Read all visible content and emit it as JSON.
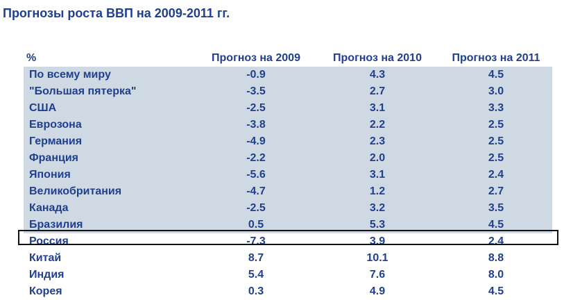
{
  "title": "Прогнозы роста ВВП на 2009-2011 гг.",
  "chart_data": {
    "type": "table",
    "title": "Прогнозы роста ВВП на 2009-2011 гг.",
    "columns": [
      "%",
      "Прогноз на 2009",
      "Прогноз на 2010",
      "Прогноз на 2011"
    ],
    "rows": [
      {
        "label": "По всему миру",
        "values": [
          "-0.9",
          "4.3",
          "4.5"
        ]
      },
      {
        "label": "\"Большая пятерка\"",
        "values": [
          "-3.5",
          "2.7",
          "3.0"
        ]
      },
      {
        "label": "США",
        "values": [
          "-2.5",
          "3.1",
          "3.3"
        ]
      },
      {
        "label": "Еврозона",
        "values": [
          "-3.8",
          "2.2",
          "2.5"
        ]
      },
      {
        "label": "Германия",
        "values": [
          "-4.9",
          "2.3",
          "2.5"
        ]
      },
      {
        "label": "Франция",
        "values": [
          "-2.2",
          "2.0",
          "2.5"
        ]
      },
      {
        "label": "Япония",
        "values": [
          "-5.6",
          "3.1",
          "2.4"
        ]
      },
      {
        "label": "Великобритания",
        "values": [
          "-4.7",
          "1.2",
          "2.7"
        ]
      },
      {
        "label": "Канада",
        "values": [
          "-2.5",
          "3.2",
          "3.5"
        ]
      },
      {
        "label": "Бразилия",
        "values": [
          "0.5",
          "5.3",
          "4.5"
        ]
      },
      {
        "label": "Россия",
        "values": [
          "-7.3",
          "3.9",
          "2.4"
        ]
      },
      {
        "label": "Китай",
        "values": [
          "8.7",
          "10.1",
          "8.8"
        ]
      },
      {
        "label": "Индия",
        "values": [
          "5.4",
          "7.6",
          "8.0"
        ]
      },
      {
        "label": "Корея",
        "values": [
          "0.3",
          "4.9",
          "4.5"
        ]
      }
    ],
    "highlighted_row": "Россия",
    "colors": {
      "text": "#1f3f8f",
      "shade": "#cfd9e3",
      "highlight_border": "#111111"
    }
  }
}
